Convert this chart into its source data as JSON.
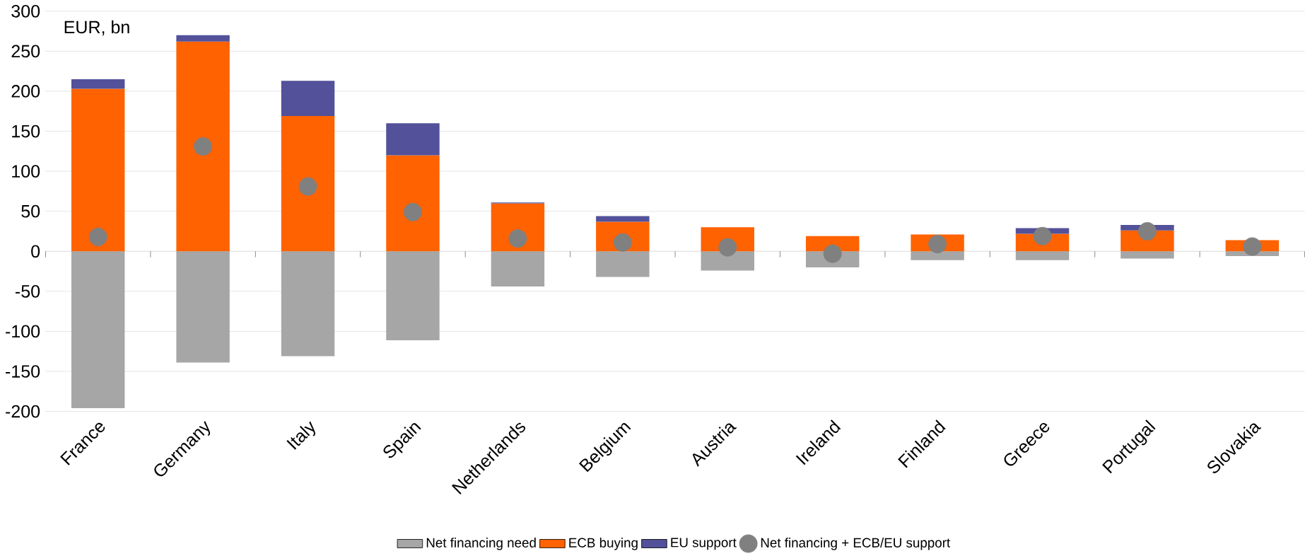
{
  "chart_data": {
    "type": "bar",
    "stacked": true,
    "ylabel": "EUR, bn",
    "categories": [
      "France",
      "Germany",
      "Italy",
      "Spain",
      "Netherlands",
      "Belgium",
      "Austria",
      "Ireland",
      "Finland",
      "Greece",
      "Portugal",
      "Slovakia"
    ],
    "series": [
      {
        "name": "Net financing need",
        "color": "#a6a6a6",
        "values": [
          -196,
          -139,
          -131,
          -111,
          -44,
          -32,
          -24,
          -20,
          -11,
          -11,
          -9,
          -6
        ]
      },
      {
        "name": "ECB buying",
        "color": "#ff6200",
        "values": [
          203,
          262,
          169,
          120,
          60,
          37,
          30,
          19,
          21,
          22,
          26,
          14
        ]
      },
      {
        "name": "EU support",
        "color": "#525199",
        "values": [
          12,
          8,
          44,
          40,
          1,
          7,
          0,
          0,
          0,
          7,
          7,
          0
        ]
      },
      {
        "name": "Net financing + ECB/EU support",
        "type": "scatter",
        "marker": "circle",
        "color": "#808080",
        "x": [
          "France",
          "Germany",
          "Italy",
          "Spain",
          "Netherlands",
          "Belgium",
          "Austria",
          "Ireland",
          "Finland",
          "Greece",
          "Portugal",
          "Slovakia"
        ],
        "values": [
          18,
          131,
          81,
          49,
          16,
          11,
          5,
          -3,
          9,
          19,
          25,
          6
        ]
      }
    ],
    "ylim": [
      -200,
      300
    ],
    "yticks": [
      -200,
      -150,
      -100,
      -50,
      0,
      50,
      100,
      150,
      200,
      250,
      300
    ],
    "grid": "y",
    "legend": "bottom"
  }
}
